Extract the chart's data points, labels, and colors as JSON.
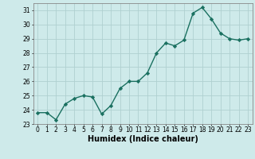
{
  "x_values": [
    0,
    1,
    2,
    3,
    4,
    5,
    6,
    7,
    8,
    9,
    10,
    11,
    12,
    13,
    14,
    15,
    16,
    17,
    18,
    19,
    20,
    21,
    22,
    23
  ],
  "y_values": [
    23.8,
    23.8,
    23.3,
    24.4,
    24.8,
    25.0,
    24.9,
    23.7,
    24.3,
    25.5,
    26.0,
    26.0,
    26.6,
    28.0,
    28.7,
    28.5,
    28.9,
    30.8,
    31.2,
    30.4,
    29.4,
    29.0,
    28.9,
    29.0
  ],
  "line_color": "#1a7060",
  "marker": "D",
  "marker_size": 2.2,
  "bg_color": "#ceeaea",
  "grid_color": "#b0d0d0",
  "xlabel": "Humidex (Indice chaleur)",
  "ylim": [
    23,
    31.5
  ],
  "yticks": [
    23,
    24,
    25,
    26,
    27,
    28,
    29,
    30,
    31
  ],
  "xticks": [
    0,
    1,
    2,
    3,
    4,
    5,
    6,
    7,
    8,
    9,
    10,
    11,
    12,
    13,
    14,
    15,
    16,
    17,
    18,
    19,
    20,
    21,
    22,
    23
  ],
  "tick_fontsize": 5.5,
  "xlabel_fontsize": 7.0,
  "line_width": 1.0
}
